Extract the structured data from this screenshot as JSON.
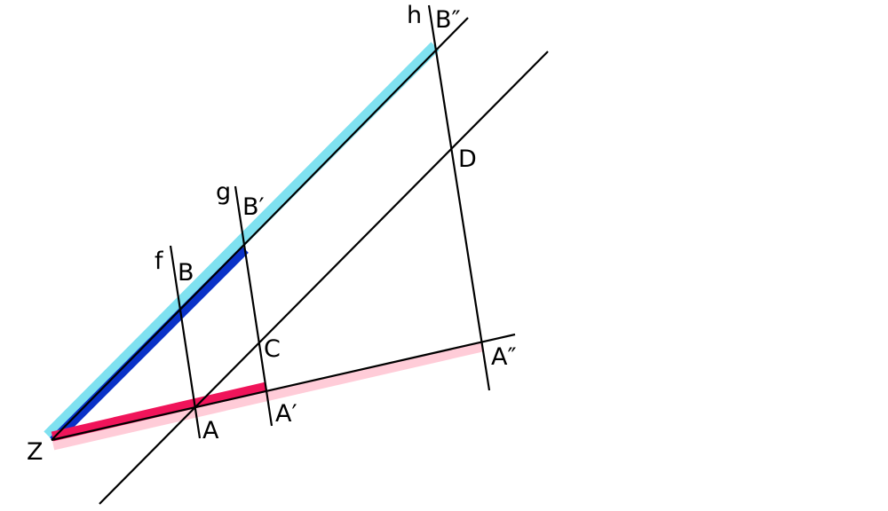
{
  "colors": {
    "light_cyan": "#7fe1f0",
    "dark_blue": "#0a32c8",
    "magenta": "#f0145a",
    "light_pink": "#ffccd8",
    "line": "#000000"
  },
  "labels": {
    "Z": "Z",
    "A": "A",
    "A1": "A′",
    "A2": "A″",
    "B": "B",
    "B1": "B′",
    "B2": "B″",
    "C": "C",
    "D": "D",
    "f": "f",
    "g": "g",
    "h": "h"
  }
}
